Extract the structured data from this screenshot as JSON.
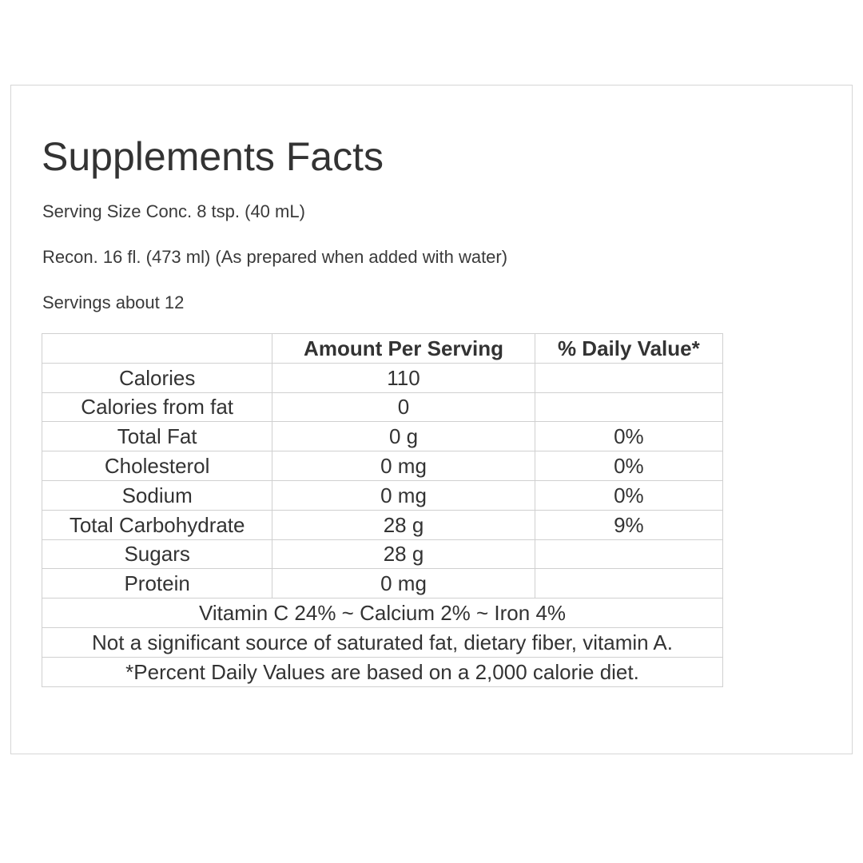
{
  "title": "Supplements Facts",
  "serving_size": "Serving Size Conc. 8 tsp. (40 mL)",
  "reconstitution": "Recon. 16 fl. (473 ml) (As prepared when added with water)",
  "servings": "Servings about 12",
  "table": {
    "headers": [
      "",
      "Amount Per Serving",
      "% Daily Value*"
    ],
    "rows": [
      {
        "name": "Calories",
        "amount": "110",
        "dv": ""
      },
      {
        "name": "Calories from fat",
        "amount": "0",
        "dv": ""
      },
      {
        "name": "Total Fat",
        "amount": "0 g",
        "dv": "0%"
      },
      {
        "name": "Cholesterol",
        "amount": "0 mg",
        "dv": "0%"
      },
      {
        "name": "Sodium",
        "amount": "0 mg",
        "dv": "0%"
      },
      {
        "name": "Total Carbohydrate",
        "amount": "28 g",
        "dv": "9%"
      },
      {
        "name": "Sugars",
        "amount": "28 g",
        "dv": ""
      },
      {
        "name": "Protein",
        "amount": "0 mg",
        "dv": ""
      }
    ],
    "footnotes": [
      "Vitamin C 24% ~ Calcium 2% ~ Iron 4%",
      "Not a significant source of saturated fat, dietary fiber, vitamin A.",
      "*Percent Daily Values are based on a 2,000 calorie diet."
    ]
  },
  "colors": {
    "text": "#333333",
    "border": "#d0d0d0",
    "panel_border": "#d6d6d6"
  }
}
